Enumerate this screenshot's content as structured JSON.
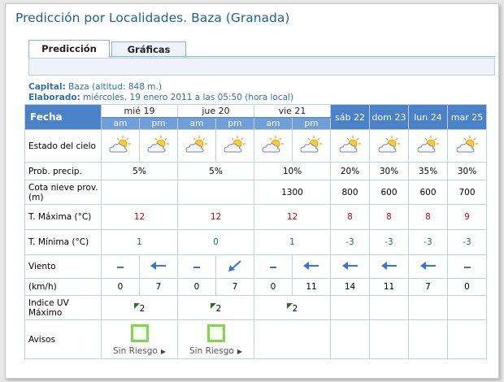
{
  "title": "Predicción por Localidades. Baza (Granada)",
  "tabs": [
    {
      "label": "Predicción",
      "active": true
    },
    {
      "label": "Gráficas",
      "active": false
    }
  ],
  "info": {
    "capital_label": "Capital:",
    "capital_value": "Baza (altitud: 848 m.)",
    "elaborado_label": "Elaborado:",
    "elaborado_value": "miércoles, 19 enero 2011 a las 05:50 (hora local)"
  },
  "table": {
    "fecha_label": "Fecha",
    "split_days": [
      "mié 19",
      "jue 20",
      "vie 21"
    ],
    "single_days": [
      "sáb 22",
      "dom 23",
      "lun 24",
      "mar 25"
    ],
    "am": "am",
    "pm": "pm",
    "rows": {
      "estado": "Estado del cielo",
      "prob": "Prob. precip.",
      "cota": "Cota nieve prov.(m)",
      "tmax": "T. Máxima (°C)",
      "tmin": "T. Mínima (°C)",
      "viento": "Viento",
      "kmh": "(km/h)",
      "uv": "Indice UV Máximo",
      "avisos": "Avisos"
    },
    "prob_split": [
      "5%",
      "5%",
      "10%"
    ],
    "prob_single": [
      "20%",
      "30%",
      "35%",
      "30%"
    ],
    "cota_split": [
      "",
      "",
      "1300"
    ],
    "cota_single": [
      "800",
      "600",
      "600",
      "700"
    ],
    "tmax_split": [
      "12",
      "12",
      "12"
    ],
    "tmax_single": [
      "8",
      "8",
      "8",
      "9"
    ],
    "tmin_split": [
      "1",
      "0",
      "1"
    ],
    "tmin_single": [
      "-3",
      "-3",
      "-3",
      "-3"
    ],
    "wind_split": [
      "calm",
      "W",
      "calm",
      "SW",
      "calm",
      "W"
    ],
    "wind_single": [
      "W",
      "W",
      "W",
      "calm"
    ],
    "kmh_split": [
      "0",
      "7",
      "0",
      "7",
      "0",
      "11"
    ],
    "kmh_single": [
      "14",
      "11",
      "7",
      "0"
    ],
    "uv": [
      "2",
      "2",
      "2"
    ],
    "avisos_label": "Sin Riesgo",
    "sky_icon": "partly-cloudy-sun-icon"
  },
  "colors": {
    "header_blue": "#4a82c8",
    "title_blue": "#1f5f9e",
    "temp_max_red": "#cc0000",
    "temp_min_blue": "#1f5fb8",
    "aviso_green": "#7fd84a"
  }
}
